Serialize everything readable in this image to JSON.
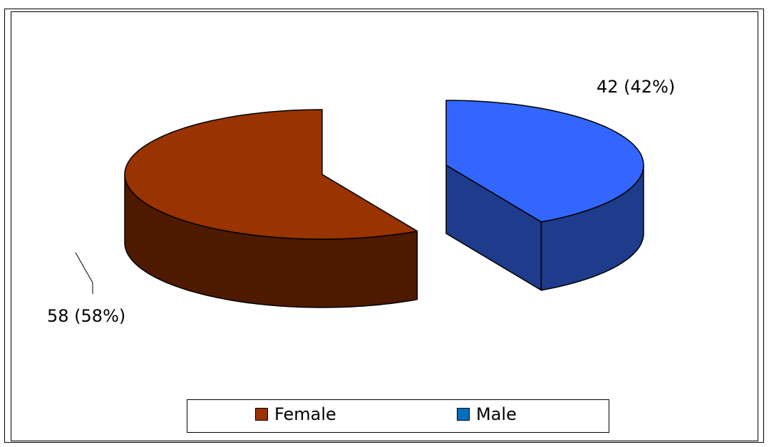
{
  "chart_data": {
    "type": "pie",
    "style": "3d-exploded",
    "categories": [
      "Female",
      "Male"
    ],
    "values": [
      58,
      42
    ],
    "labels": [
      "58 (58%)",
      "42 (42%)"
    ],
    "colors": {
      "Female": {
        "top": "#993300",
        "side": "#4d1a00"
      },
      "Male": {
        "top": "#3366ff",
        "side": "#1f3b8c"
      }
    },
    "legend_position": "bottom",
    "legend": [
      {
        "name": "Female",
        "color": "#993300"
      },
      {
        "name": "Male",
        "color": "#0070c0"
      }
    ]
  }
}
